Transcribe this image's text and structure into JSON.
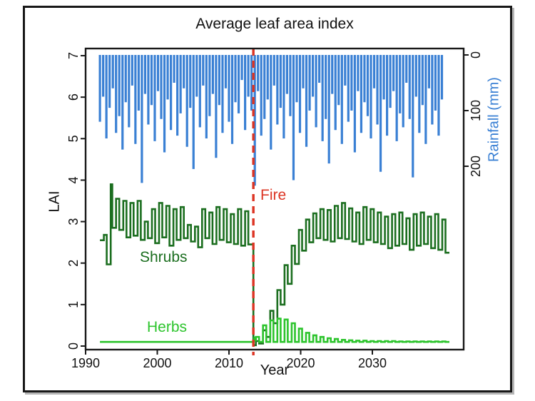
{
  "chart_data": {
    "type": "line",
    "title": "Average leaf area index",
    "axes": {
      "x": {
        "label": "Year",
        "min": 1990,
        "max": 2043,
        "ticks": [
          1990,
          2000,
          2010,
          2020,
          2030
        ],
        "grid": false
      },
      "y_left": {
        "label": "LAI",
        "min": 0,
        "max": 7,
        "ticks": [
          0,
          1,
          2,
          3,
          4,
          5,
          6,
          7
        ]
      },
      "y_right": {
        "label": "Rainfall (mm)",
        "min": 0,
        "max": 260,
        "ticks": [
          0,
          100,
          200
        ],
        "inverted": true,
        "label_color": "#3a80d4"
      }
    },
    "fire": {
      "label": "Fire",
      "year": 2013.4,
      "color": "#dc3423"
    },
    "series_labels": {
      "shrubs": "Shrubs",
      "herbs": "Herbs"
    },
    "series": {
      "rainfall": {
        "name": "Rainfall",
        "color": "#3a80d4",
        "start_year": 1992,
        "step_years": 0.45,
        "depths_mm": [
          120,
          75,
          150,
          95,
          60,
          140,
          110,
          170,
          85,
          130,
          55,
          160,
          100,
          230,
          70,
          125,
          90,
          155,
          65,
          115,
          175,
          80,
          135,
          50,
          145,
          105,
          60,
          165,
          95,
          205,
          75,
          130,
          55,
          150,
          110,
          70,
          185,
          90,
          140,
          60,
          120,
          160,
          85,
          105,
          45,
          135,
          75,
          100,
          235,
          65,
          145,
          115,
          80,
          170,
          55,
          125,
          95,
          150,
          70,
          110,
          225,
          85,
          140,
          60,
          165,
          100,
          75,
          130,
          50,
          155,
          115,
          195,
          70,
          135,
          90,
          160,
          55,
          120,
          100,
          175,
          65,
          140,
          85,
          110,
          150,
          60,
          125,
          210,
          80,
          145,
          95,
          65,
          155,
          105,
          130,
          50,
          115,
          220,
          75,
          140,
          90,
          160,
          60,
          125,
          100,
          145,
          80
        ]
      },
      "shrubs": {
        "name": "Shrubs (LAI)",
        "color": "#1b6e1f",
        "intro_points": [
          [
            1992.0,
            2.55
          ],
          [
            1992.55,
            2.55
          ],
          [
            1992.55,
            2.68
          ],
          [
            1992.95,
            2.68
          ],
          [
            1992.95,
            1.97
          ],
          [
            1993.5,
            1.97
          ],
          [
            1993.5,
            3.9
          ],
          [
            1993.72,
            3.9
          ],
          [
            1993.72,
            2.85
          ],
          [
            1994.25,
            2.85
          ]
        ],
        "pre_fire": {
          "start": 1994,
          "peaks": [
            3.55,
            3.5,
            3.45,
            3.5,
            3.0,
            3.3,
            3.45,
            3.38,
            3.3,
            3.35,
            2.92,
            2.88,
            3.3,
            3.22,
            3.35,
            3.3,
            3.18,
            3.3,
            3.25
          ],
          "troughs": [
            2.8,
            2.62,
            2.66,
            2.56,
            2.6,
            2.48,
            2.62,
            2.42,
            2.56,
            2.6,
            2.52,
            2.38,
            2.6,
            2.46,
            2.56,
            2.5,
            2.46,
            2.42,
            2.45
          ]
        },
        "level_after_fire": 0.02,
        "post_fire": {
          "start": 2013.5,
          "peaks": [
            0.12,
            0.38,
            0.85,
            1.35,
            1.95,
            2.42,
            2.8,
            3.05,
            3.2,
            3.3,
            3.28,
            3.38,
            3.45,
            3.32,
            3.22,
            3.35,
            3.3,
            3.22,
            3.12,
            3.18,
            3.22,
            3.08,
            3.18,
            3.22,
            3.12,
            3.18,
            3.05
          ],
          "troughs": [
            0.06,
            0.22,
            0.55,
            1.0,
            1.5,
            1.98,
            2.3,
            2.5,
            2.6,
            2.56,
            2.52,
            2.6,
            2.58,
            2.52,
            2.46,
            2.56,
            2.5,
            2.46,
            2.36,
            2.42,
            2.46,
            2.32,
            2.42,
            2.46,
            2.36,
            2.32,
            2.25
          ]
        },
        "end_year": 2040.9
      },
      "herbs": {
        "name": "Herbs (LAI)",
        "color": "#2cc42c",
        "intro_points": [
          [
            1992.0,
            0.1
          ],
          [
            2013.45,
            0.1
          ],
          [
            2013.55,
            0.22
          ],
          [
            2013.7,
            0.14
          ],
          [
            2013.75,
            0.14
          ]
        ],
        "post_fire": {
          "start": 2013.5,
          "peaks": [
            0.22,
            0.5,
            0.62,
            0.66,
            0.64,
            0.55,
            0.42,
            0.32,
            0.26,
            0.22,
            0.19,
            0.17,
            0.15,
            0.14,
            0.13,
            0.13,
            0.12,
            0.12,
            0.12,
            0.12,
            0.11,
            0.11,
            0.11,
            0.11,
            0.11,
            0.11,
            0.11
          ],
          "trough_level": 0.1
        },
        "end_year": 2040.9
      }
    },
    "legend": {
      "position": "inline-annotations"
    }
  }
}
